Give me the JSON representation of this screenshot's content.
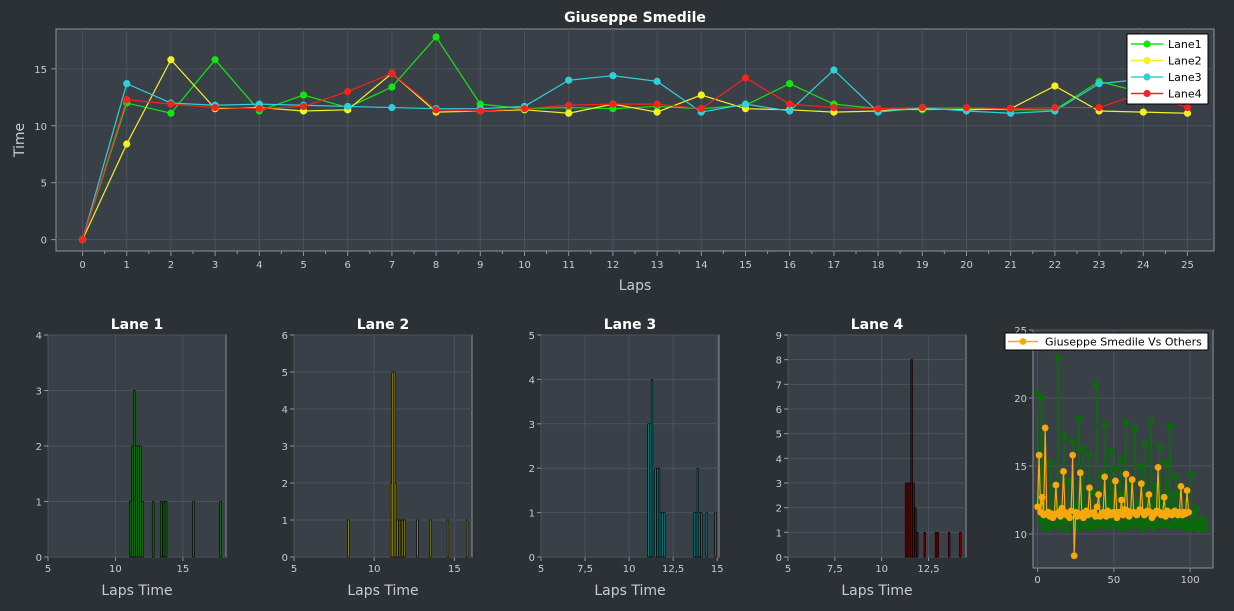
{
  "colors": {
    "background": "#2c3136",
    "plot_bg": "#3a4048",
    "grid": "#4b525b",
    "axis": "#8e9499",
    "text": "#ffffff",
    "tick": "#c8ccd0",
    "lane1": "#11e611",
    "lane2": "#f1f123",
    "lane3": "#2ed1d8",
    "lane4": "#f4241b",
    "hist1": "#0f6f0f",
    "hist2": "#8a8410",
    "hist3": "#0f7b7b",
    "hist4": "#800000",
    "comp_main": "#f7a80c",
    "comp_others": "#0b6b0b"
  },
  "chart_data": [
    {
      "id": "main",
      "type": "line",
      "title": "Giuseppe Smedile",
      "xlabel": "Laps",
      "ylabel": "Time",
      "xlim": [
        -0.6,
        25.6
      ],
      "ylim": [
        -1,
        18.5
      ],
      "xticks": [
        0,
        1,
        2,
        3,
        4,
        5,
        6,
        7,
        8,
        9,
        10,
        11,
        12,
        13,
        14,
        15,
        16,
        17,
        18,
        19,
        20,
        21,
        22,
        23,
        24,
        25
      ],
      "yticks": [
        0,
        5,
        10,
        15
      ],
      "grid": true,
      "legend": "top-right",
      "series": [
        {
          "name": "Lane1",
          "color_key": "lane1",
          "x": [
            0,
            1,
            2,
            3,
            4,
            5,
            6,
            7,
            8,
            9,
            10,
            11,
            12,
            13,
            14,
            15,
            16,
            17,
            18,
            19,
            20,
            21,
            22,
            23,
            24,
            25
          ],
          "values": [
            0,
            12.0,
            11.1,
            15.8,
            11.3,
            12.7,
            11.6,
            13.4,
            17.8,
            11.9,
            11.5,
            11.6,
            11.5,
            11.7,
            11.5,
            11.8,
            13.7,
            11.9,
            11.5,
            11.4,
            11.5,
            11.4,
            11.4,
            13.9,
            12.9,
            12.5
          ]
        },
        {
          "name": "Lane2",
          "color_key": "lane2",
          "x": [
            0,
            1,
            2,
            3,
            4,
            5,
            6,
            7,
            8,
            9,
            10,
            11,
            12,
            13,
            14,
            15,
            16,
            17,
            18,
            19,
            20,
            21,
            22,
            23,
            24,
            25
          ],
          "values": [
            0,
            8.4,
            15.8,
            11.5,
            11.6,
            11.3,
            11.4,
            14.6,
            11.2,
            11.3,
            11.4,
            11.1,
            11.9,
            11.2,
            12.7,
            11.5,
            11.4,
            11.2,
            11.3,
            11.5,
            11.4,
            11.5,
            13.5,
            11.3,
            11.2,
            11.1
          ]
        },
        {
          "name": "Lane3",
          "color_key": "lane3",
          "x": [
            0,
            1,
            2,
            3,
            4,
            5,
            6,
            7,
            8,
            9,
            10,
            11,
            12,
            13,
            14,
            15,
            16,
            17,
            18,
            19,
            20,
            21,
            22,
            23,
            24
          ],
          "values": [
            0,
            13.7,
            12.0,
            11.8,
            11.9,
            11.8,
            11.7,
            11.6,
            11.5,
            11.5,
            11.7,
            14.0,
            14.4,
            13.9,
            11.2,
            11.9,
            11.3,
            14.9,
            11.2,
            11.6,
            11.3,
            11.1,
            11.3,
            13.7,
            14.1
          ]
        },
        {
          "name": "Lane4",
          "color_key": "lane4",
          "x": [
            0,
            1,
            2,
            3,
            4,
            5,
            6,
            7,
            8,
            9,
            10,
            11,
            12,
            13,
            14,
            15,
            16,
            17,
            18,
            19,
            20,
            21,
            22,
            23,
            24,
            25
          ],
          "values": [
            0,
            12.3,
            11.9,
            11.6,
            11.5,
            11.7,
            13.0,
            14.6,
            11.4,
            11.3,
            11.5,
            11.8,
            11.9,
            11.9,
            11.5,
            14.2,
            11.9,
            11.6,
            11.5,
            11.6,
            11.6,
            11.5,
            11.6,
            11.6,
            12.9,
            11.6
          ]
        }
      ]
    },
    {
      "id": "lane1",
      "type": "bar",
      "title": "Lane 1",
      "xlabel": "Laps Time",
      "ylabel": "",
      "xlim": [
        5,
        18.2
      ],
      "ylim": [
        0,
        4
      ],
      "xticks": [
        5,
        10,
        15
      ],
      "yticks": [
        0,
        1,
        2,
        3,
        4
      ],
      "color_key": "hist1",
      "bar_width": 0.14,
      "bins": [
        11.1,
        11.25,
        11.4,
        11.55,
        11.7,
        11.85,
        12.0,
        12.8,
        13.4,
        13.6,
        13.75,
        15.8,
        17.8
      ],
      "values": [
        1,
        2,
        3,
        2,
        2,
        2,
        1,
        1,
        1,
        1,
        1,
        1,
        1
      ]
    },
    {
      "id": "lane2",
      "type": "bar",
      "title": "Lane 2",
      "xlabel": "Laps Time",
      "ylabel": "",
      "xlim": [
        5,
        16.1
      ],
      "ylim": [
        0,
        6
      ],
      "xticks": [
        5,
        10,
        15
      ],
      "yticks": [
        0,
        1,
        2,
        3,
        4,
        5,
        6
      ],
      "color_key": "hist2",
      "bar_width": 0.1,
      "bins": [
        8.4,
        11.05,
        11.15,
        11.25,
        11.35,
        11.45,
        11.6,
        11.75,
        11.9,
        12.7,
        13.5,
        14.6,
        15.8
      ],
      "values": [
        1,
        2,
        5,
        5,
        2,
        1,
        1,
        1,
        1,
        1,
        1,
        1,
        1
      ]
    },
    {
      "id": "lane3",
      "type": "bar",
      "title": "Lane 3",
      "xlabel": "Laps Time",
      "ylabel": "",
      "xlim": [
        5,
        15.1
      ],
      "ylim": [
        0,
        5
      ],
      "xticks": [
        5,
        7.5,
        10,
        12.5,
        15
      ],
      "xtick_labels": [
        "5",
        "7,5",
        "10",
        "12,5",
        "15"
      ],
      "yticks": [
        0,
        1,
        2,
        3,
        4,
        5
      ],
      "color_key": "hist3",
      "bar_width": 0.09,
      "bins": [
        11.1,
        11.2,
        11.3,
        11.5,
        11.6,
        11.7,
        11.8,
        11.9,
        12.0,
        13.7,
        13.8,
        13.9,
        14.0,
        14.1,
        14.4,
        14.9
      ],
      "values": [
        3,
        3,
        4,
        2,
        2,
        2,
        1,
        1,
        1,
        1,
        1,
        2,
        1,
        1,
        1,
        1
      ]
    },
    {
      "id": "lane4",
      "type": "bar",
      "title": "Lane 4",
      "xlabel": "Laps Time",
      "ylabel": "",
      "xlim": [
        5,
        14.5
      ],
      "ylim": [
        0,
        9
      ],
      "xticks": [
        5,
        7.5,
        10,
        12.5
      ],
      "xtick_labels": [
        "5",
        "7,5",
        "10",
        "12,5"
      ],
      "yticks": [
        0,
        1,
        2,
        3,
        4,
        5,
        6,
        7,
        8,
        9
      ],
      "color_key": "hist4",
      "bar_width": 0.09,
      "bins": [
        11.3,
        11.4,
        11.5,
        11.6,
        11.7,
        11.8,
        11.9,
        12.3,
        12.9,
        13.0,
        13.6,
        14.2
      ],
      "values": [
        3,
        3,
        3,
        8,
        3,
        2,
        1,
        1,
        1,
        1,
        1,
        1
      ]
    },
    {
      "id": "comparison",
      "type": "line",
      "title": "",
      "xlabel": "",
      "ylabel": "",
      "xlim": [
        -3,
        115
      ],
      "ylim": [
        7.5,
        25
      ],
      "xticks": [
        0,
        50,
        100
      ],
      "yticks": [
        10,
        15,
        20,
        25
      ],
      "legend": "top-right",
      "series": [
        {
          "name": "Giuseppe Smedile Vs Others",
          "color_key": "comp_main",
          "values": [
            12.0,
            15.8,
            11.6,
            12.7,
            11.4,
            17.8,
            11.5,
            11.6,
            11.3,
            11.5,
            11.2,
            11.4,
            13.6,
            11.5,
            11.6,
            11.3,
            11.9,
            14.6,
            11.6,
            11.4,
            11.5,
            11.2,
            11.7,
            15.8,
            8.4,
            11.6,
            11.3,
            11.5,
            14.5,
            11.4,
            11.2,
            11.6,
            11.7,
            11.4,
            13.4,
            11.5,
            11.5,
            11.6,
            11.3,
            12.0,
            12.9,
            11.3,
            11.5,
            11.6,
            14.2,
            11.3,
            11.7,
            11.6,
            11.4,
            11.5,
            11.6,
            13.9,
            11.2,
            11.6,
            11.5,
            12.5,
            11.4,
            11.8,
            14.4,
            11.7,
            11.3,
            11.6,
            14.0,
            11.6,
            11.5,
            11.4,
            11.6,
            11.8,
            13.7,
            11.6,
            11.4,
            11.5,
            11.7,
            12.9,
            11.6,
            11.2,
            11.4,
            11.5,
            11.7,
            14.9,
            11.6,
            11.4,
            11.5,
            12.7,
            11.3,
            11.7,
            11.6,
            11.5,
            11.4,
            11.6,
            11.7,
            11.5,
            11.4,
            11.6,
            13.5,
            11.4,
            11.6,
            11.5,
            13.2,
            11.6
          ]
        },
        {
          "name": "",
          "color_key": "comp_others",
          "values": [
            20.3,
            12.5,
            11.0,
            20.0,
            10.5,
            12.8,
            10.9,
            11.8,
            10.4,
            15.2,
            11.2,
            10.6,
            13.6,
            10.7,
            23.0,
            10.5,
            12.1,
            10.8,
            17.2,
            11.0,
            10.3,
            13.9,
            10.9,
            11.4,
            16.8,
            10.7,
            12.2,
            10.4,
            18.5,
            11.1,
            10.5,
            16.3,
            10.8,
            12.0,
            10.6,
            15.8,
            11.2,
            10.4,
            13.1,
            10.7,
            21.0,
            11.0,
            10.6,
            14.3,
            10.8,
            11.6,
            18.0,
            10.5,
            12.4,
            10.9,
            16.1,
            11.3,
            10.6,
            14.8,
            10.8,
            11.5,
            15.5,
            10.4,
            12.9,
            10.7,
            18.2,
            11.0,
            10.5,
            13.7,
            10.9,
            11.8,
            17.8,
            10.6,
            12.3,
            10.8,
            15.0,
            11.1,
            10.4,
            16.6,
            10.7,
            12.1,
            10.9,
            18.3,
            11.4,
            10.5,
            13.5,
            10.8,
            11.9,
            16.4,
            10.6,
            12.6,
            11.0,
            15.2,
            10.7,
            11.7,
            17.9,
            10.5,
            12.8,
            10.9,
            14.2,
            11.2,
            10.6,
            13.0,
            10.8,
            11.4,
            10.5,
            12.3,
            10.9,
            10.4,
            14.4,
            10.8,
            11.6,
            10.5,
            11.9,
            10.7,
            10.3,
            11.1,
            10.6,
            10.9,
            10.4
          ]
        }
      ]
    }
  ]
}
